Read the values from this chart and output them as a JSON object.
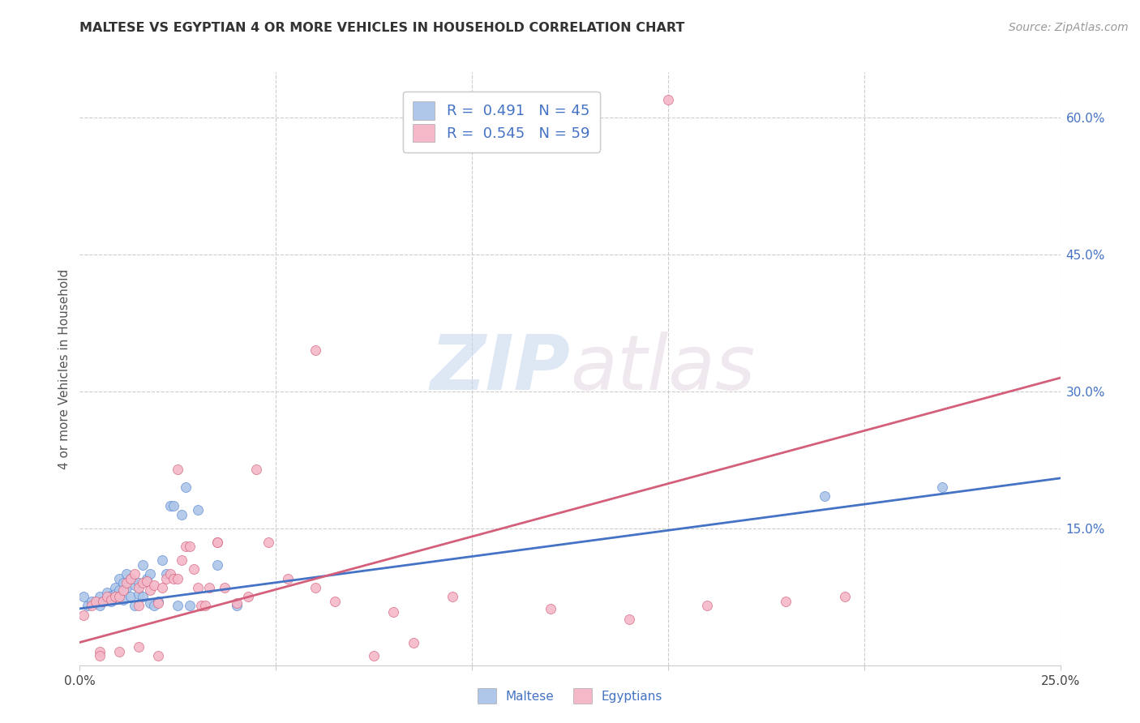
{
  "title": "MALTESE VS EGYPTIAN 4 OR MORE VEHICLES IN HOUSEHOLD CORRELATION CHART",
  "source": "Source: ZipAtlas.com",
  "ylabel": "4 or more Vehicles in Household",
  "xlim": [
    0.0,
    0.25
  ],
  "ylim": [
    0.0,
    0.65
  ],
  "xticks": [
    0.0,
    0.05,
    0.1,
    0.15,
    0.2,
    0.25
  ],
  "xticklabels": [
    "0.0%",
    "",
    "",
    "",
    "",
    "25.0%"
  ],
  "yticks_right": [
    0.0,
    0.15,
    0.3,
    0.45,
    0.6
  ],
  "yticklabels_right": [
    "",
    "15.0%",
    "30.0%",
    "45.0%",
    "60.0%"
  ],
  "watermark_zip": "ZIP",
  "watermark_atlas": "atlas",
  "legend_labels": [
    "Maltese",
    "Egyptians"
  ],
  "maltese_R": "0.491",
  "maltese_N": "45",
  "egyptian_R": "0.545",
  "egyptian_N": "59",
  "maltese_color": "#aec6e8",
  "maltese_line_color": "#4472c4",
  "maltese_edge_color": "#5588d4",
  "egyptian_color": "#f5b8c8",
  "egyptian_line_color": "#d45f7a",
  "egyptian_edge_color": "#d45f7a",
  "maltese_scatter_x": [
    0.001,
    0.002,
    0.003,
    0.004,
    0.005,
    0.005,
    0.006,
    0.007,
    0.007,
    0.008,
    0.008,
    0.009,
    0.009,
    0.01,
    0.01,
    0.011,
    0.011,
    0.012,
    0.012,
    0.013,
    0.013,
    0.014,
    0.014,
    0.015,
    0.015,
    0.016,
    0.016,
    0.017,
    0.018,
    0.018,
    0.019,
    0.02,
    0.021,
    0.022,
    0.023,
    0.024,
    0.025,
    0.026,
    0.027,
    0.028,
    0.03,
    0.035,
    0.04,
    0.19,
    0.22
  ],
  "maltese_scatter_y": [
    0.075,
    0.065,
    0.07,
    0.068,
    0.075,
    0.065,
    0.07,
    0.08,
    0.072,
    0.076,
    0.07,
    0.085,
    0.078,
    0.095,
    0.082,
    0.09,
    0.072,
    0.1,
    0.085,
    0.095,
    0.075,
    0.088,
    0.065,
    0.09,
    0.078,
    0.11,
    0.075,
    0.095,
    0.1,
    0.068,
    0.065,
    0.07,
    0.115,
    0.1,
    0.175,
    0.175,
    0.065,
    0.165,
    0.195,
    0.065,
    0.17,
    0.11,
    0.065,
    0.185,
    0.195
  ],
  "egyptian_scatter_x": [
    0.001,
    0.003,
    0.004,
    0.005,
    0.006,
    0.007,
    0.008,
    0.009,
    0.01,
    0.011,
    0.012,
    0.013,
    0.014,
    0.015,
    0.015,
    0.016,
    0.017,
    0.018,
    0.019,
    0.02,
    0.021,
    0.022,
    0.023,
    0.024,
    0.025,
    0.026,
    0.027,
    0.028,
    0.029,
    0.03,
    0.031,
    0.032,
    0.033,
    0.035,
    0.037,
    0.04,
    0.043,
    0.048,
    0.053,
    0.06,
    0.065,
    0.075,
    0.08,
    0.085,
    0.095,
    0.12,
    0.14,
    0.16,
    0.18,
    0.195,
    0.005,
    0.01,
    0.015,
    0.02,
    0.025,
    0.035,
    0.045,
    0.06,
    0.15
  ],
  "egyptian_scatter_y": [
    0.055,
    0.065,
    0.07,
    0.015,
    0.07,
    0.075,
    0.072,
    0.075,
    0.075,
    0.082,
    0.09,
    0.095,
    0.1,
    0.065,
    0.085,
    0.09,
    0.092,
    0.082,
    0.088,
    0.068,
    0.085,
    0.095,
    0.1,
    0.095,
    0.095,
    0.115,
    0.13,
    0.13,
    0.105,
    0.085,
    0.065,
    0.065,
    0.085,
    0.135,
    0.085,
    0.068,
    0.075,
    0.135,
    0.095,
    0.085,
    0.07,
    0.01,
    0.058,
    0.025,
    0.075,
    0.062,
    0.05,
    0.065,
    0.07,
    0.075,
    0.01,
    0.015,
    0.02,
    0.01,
    0.215,
    0.135,
    0.215,
    0.345,
    0.62
  ],
  "maltese_line_x": [
    0.0,
    0.25
  ],
  "maltese_line_y": [
    0.062,
    0.205
  ],
  "egyptian_line_x": [
    0.0,
    0.25
  ],
  "egyptian_line_y": [
    0.025,
    0.315
  ]
}
